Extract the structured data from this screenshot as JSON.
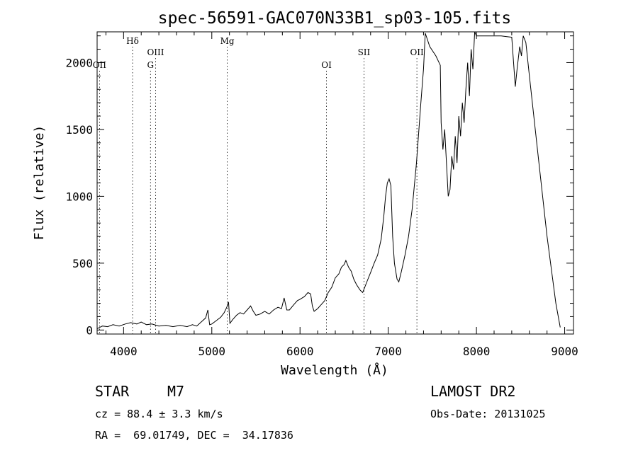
{
  "chart_data": {
    "type": "line",
    "title": "spec-56591-GAC070N33B1_sp03-105.fits",
    "xlabel": "Wavelength (Å)",
    "ylabel": "Flux (relative)",
    "xlim": [
      3700,
      9100
    ],
    "ylim": [
      -30,
      2230
    ],
    "xticks": [
      4000,
      5000,
      6000,
      7000,
      8000,
      9000
    ],
    "yticks": [
      0,
      500,
      1000,
      1500,
      2000
    ],
    "series": [
      {
        "values": [
          [
            3700,
            10
          ],
          [
            3760,
            30
          ],
          [
            3820,
            25
          ],
          [
            3880,
            40
          ],
          [
            3950,
            30
          ],
          [
            4020,
            45
          ],
          [
            4080,
            55
          ],
          [
            4150,
            45
          ],
          [
            4200,
            60
          ],
          [
            4260,
            40
          ],
          [
            4320,
            45
          ],
          [
            4400,
            30
          ],
          [
            4480,
            35
          ],
          [
            4560,
            25
          ],
          [
            4640,
            35
          ],
          [
            4720,
            25
          ],
          [
            4780,
            40
          ],
          [
            4830,
            30
          ],
          [
            4880,
            60
          ],
          [
            4930,
            90
          ],
          [
            4955,
            150
          ],
          [
            4975,
            40
          ],
          [
            5000,
            45
          ],
          [
            5050,
            70
          ],
          [
            5100,
            95
          ],
          [
            5140,
            130
          ],
          [
            5170,
            170
          ],
          [
            5190,
            210
          ],
          [
            5205,
            50
          ],
          [
            5240,
            80
          ],
          [
            5280,
            110
          ],
          [
            5320,
            130
          ],
          [
            5360,
            120
          ],
          [
            5400,
            150
          ],
          [
            5440,
            180
          ],
          [
            5470,
            140
          ],
          [
            5500,
            110
          ],
          [
            5550,
            120
          ],
          [
            5600,
            140
          ],
          [
            5650,
            120
          ],
          [
            5700,
            150
          ],
          [
            5750,
            170
          ],
          [
            5790,
            160
          ],
          [
            5820,
            240
          ],
          [
            5850,
            150
          ],
          [
            5880,
            150
          ],
          [
            5930,
            190
          ],
          [
            5970,
            220
          ],
          [
            6000,
            230
          ],
          [
            6050,
            250
          ],
          [
            6090,
            280
          ],
          [
            6120,
            270
          ],
          [
            6140,
            180
          ],
          [
            6160,
            140
          ],
          [
            6200,
            160
          ],
          [
            6240,
            190
          ],
          [
            6280,
            220
          ],
          [
            6320,
            280
          ],
          [
            6360,
            320
          ],
          [
            6400,
            390
          ],
          [
            6440,
            420
          ],
          [
            6470,
            470
          ],
          [
            6500,
            490
          ],
          [
            6520,
            520
          ],
          [
            6550,
            470
          ],
          [
            6580,
            440
          ],
          [
            6610,
            380
          ],
          [
            6640,
            340
          ],
          [
            6680,
            300
          ],
          [
            6710,
            280
          ],
          [
            6740,
            330
          ],
          [
            6770,
            380
          ],
          [
            6800,
            430
          ],
          [
            6840,
            500
          ],
          [
            6880,
            560
          ],
          [
            6920,
            680
          ],
          [
            6950,
            850
          ],
          [
            6970,
            1000
          ],
          [
            6990,
            1100
          ],
          [
            7010,
            1130
          ],
          [
            7030,
            1080
          ],
          [
            7050,
            700
          ],
          [
            7070,
            500
          ],
          [
            7100,
            380
          ],
          [
            7120,
            360
          ],
          [
            7150,
            440
          ],
          [
            7190,
            560
          ],
          [
            7230,
            700
          ],
          [
            7270,
            900
          ],
          [
            7320,
            1250
          ],
          [
            7370,
            1700
          ],
          [
            7400,
            1950
          ],
          [
            7420,
            2220
          ],
          [
            7470,
            2120
          ],
          [
            7540,
            2050
          ],
          [
            7590,
            1980
          ],
          [
            7600,
            1550
          ],
          [
            7620,
            1350
          ],
          [
            7640,
            1500
          ],
          [
            7660,
            1250
          ],
          [
            7680,
            1000
          ],
          [
            7700,
            1050
          ],
          [
            7720,
            1300
          ],
          [
            7740,
            1200
          ],
          [
            7760,
            1450
          ],
          [
            7780,
            1250
          ],
          [
            7800,
            1600
          ],
          [
            7820,
            1450
          ],
          [
            7840,
            1700
          ],
          [
            7860,
            1550
          ],
          [
            7880,
            1800
          ],
          [
            7900,
            2000
          ],
          [
            7920,
            1750
          ],
          [
            7940,
            2100
          ],
          [
            7960,
            1950
          ],
          [
            7980,
            2230
          ],
          [
            8000,
            2200
          ],
          [
            8150,
            2200
          ],
          [
            8280,
            2200
          ],
          [
            8400,
            2190
          ],
          [
            8440,
            1820
          ],
          [
            8460,
            1950
          ],
          [
            8490,
            2120
          ],
          [
            8510,
            2050
          ],
          [
            8530,
            2200
          ],
          [
            8560,
            2150
          ],
          [
            8600,
            1900
          ],
          [
            8700,
            1300
          ],
          [
            8800,
            700
          ],
          [
            8900,
            200
          ],
          [
            8950,
            20
          ]
        ]
      }
    ],
    "lines": [
      {
        "label": "OII",
        "x": 3727,
        "level": "low"
      },
      {
        "label": "Hδ",
        "x": 4102,
        "level": "high"
      },
      {
        "label": "G",
        "x": 4305,
        "level": "low"
      },
      {
        "label": "OIII",
        "x": 4363,
        "level": "mid"
      },
      {
        "label": "Mg",
        "x": 5175,
        "level": "high"
      },
      {
        "label": "OI",
        "x": 6300,
        "level": "low"
      },
      {
        "label": "OII",
        "x": 7325,
        "level": "mid"
      },
      {
        "label": "SII",
        "x": 6725,
        "level": "mid"
      }
    ],
    "grid": false
  },
  "info": {
    "object_type": "STAR",
    "subclass": "M7",
    "survey": "LAMOST DR2",
    "cz": "cz = 88.4 ± 3.3 km/s",
    "obs_date": "Obs-Date: 20131025",
    "coords": "RA =  69.01749, DEC =  34.17836"
  }
}
